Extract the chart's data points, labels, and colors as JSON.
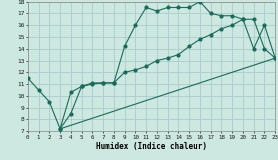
{
  "xlabel": "Humidex (Indice chaleur)",
  "xlim": [
    0,
    23
  ],
  "ylim": [
    7,
    18
  ],
  "xticks": [
    0,
    1,
    2,
    3,
    4,
    5,
    6,
    7,
    8,
    9,
    10,
    11,
    12,
    13,
    14,
    15,
    16,
    17,
    18,
    19,
    20,
    21,
    22,
    23
  ],
  "yticks": [
    7,
    8,
    9,
    10,
    11,
    12,
    13,
    14,
    15,
    16,
    17,
    18
  ],
  "background_color": "#cce8e0",
  "grid_color": "#aacccc",
  "line_color": "#1a6b5a",
  "line1_x": [
    0,
    1,
    2,
    3,
    4,
    5,
    6,
    7,
    8,
    9,
    10,
    11,
    12,
    13,
    14,
    15,
    16,
    17,
    18,
    19,
    20,
    21,
    22,
    23
  ],
  "line1_y": [
    11.5,
    10.5,
    9.5,
    7.2,
    8.5,
    10.8,
    11.1,
    11.1,
    11.1,
    14.2,
    16.0,
    17.5,
    17.2,
    17.5,
    17.5,
    17.5,
    18.0,
    17.0,
    16.8,
    16.8,
    16.5,
    14.0,
    16.0,
    13.2
  ],
  "line2_x": [
    3,
    4,
    5,
    6,
    7,
    8,
    9,
    10,
    11,
    12,
    13,
    14,
    15,
    16,
    17,
    18,
    19,
    20,
    21,
    22,
    23
  ],
  "line2_y": [
    7.2,
    10.3,
    10.8,
    11.0,
    11.1,
    11.1,
    12.0,
    12.2,
    12.5,
    13.0,
    13.2,
    13.5,
    14.2,
    14.8,
    15.2,
    15.7,
    16.0,
    16.5,
    16.5,
    14.0,
    13.2
  ],
  "line3_x": [
    3,
    23
  ],
  "line3_y": [
    7.2,
    13.2
  ]
}
